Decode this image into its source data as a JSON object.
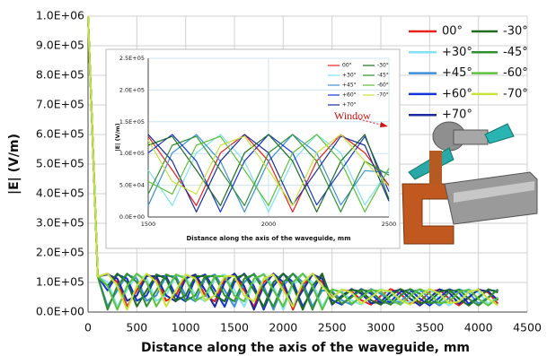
{
  "chart_data": [
    {
      "type": "line",
      "xlabel": "Distance along the axis of the waveguide, mm",
      "ylabel": "|E| (V/m)",
      "x": [
        0,
        100,
        200,
        300,
        400,
        500,
        600,
        700,
        800,
        900,
        1000,
        1100,
        1200,
        1300,
        1400,
        1500,
        1600,
        1700,
        1800,
        1900,
        2000,
        2100,
        2200,
        2300,
        2400,
        2500,
        2600,
        2700,
        2800,
        2900,
        3000,
        3100,
        3200,
        3300,
        3400,
        3500,
        3600,
        3700,
        3800,
        3900,
        4000,
        4100,
        4200
      ],
      "xlim": [
        0,
        4500
      ],
      "xticks": [
        0,
        500,
        1000,
        1500,
        2000,
        2500,
        3000,
        3500,
        4000,
        4500
      ],
      "ylim": [
        0,
        1000000
      ],
      "yticks": [
        {
          "value": 0,
          "label": "0.0E+00"
        },
        {
          "value": 100000,
          "label": "1.0E+05"
        },
        {
          "value": 200000,
          "label": "2.0E+05"
        },
        {
          "value": 300000,
          "label": "3.0E+05"
        },
        {
          "value": 400000,
          "label": "4.0E+05"
        },
        {
          "value": 500000,
          "label": "5.0E+05"
        },
        {
          "value": 600000,
          "label": "6.0E+05"
        },
        {
          "value": 700000,
          "label": "7.0E+05"
        },
        {
          "value": 800000,
          "label": "8.0E+05"
        },
        {
          "value": 900000,
          "label": "9.0E+05"
        },
        {
          "value": 1000000,
          "label": "1.0E+06"
        }
      ],
      "grid": true,
      "series": [
        {
          "name": "00°",
          "color": "#e8211c",
          "values": [
            1000000,
            120000,
            130000,
            101000,
            19000,
            73000,
            127000,
            113000,
            38000,
            56000,
            122000,
            121000,
            56000,
            36000,
            113000,
            127000,
            74000,
            18000,
            101000,
            130000,
            88000,
            8000,
            88000,
            130000,
            101000,
            50000,
            75000,
            70000,
            40000,
            25000,
            55000,
            78000,
            62000,
            30000,
            35000,
            68000,
            76000,
            45000,
            22000,
            48000,
            77000,
            66000,
            28000
          ]
        },
        {
          "name": "+30°",
          "color": "#7fe3f2",
          "values": [
            1000000,
            120000,
            101000,
            19000,
            73000,
            127000,
            113000,
            38000,
            56000,
            122000,
            121000,
            56000,
            36000,
            113000,
            127000,
            74000,
            18000,
            101000,
            130000,
            88000,
            8000,
            88000,
            130000,
            101000,
            19000,
            75000,
            70000,
            40000,
            25000,
            55000,
            78000,
            62000,
            30000,
            35000,
            68000,
            76000,
            45000,
            22000,
            48000,
            77000,
            66000,
            28000,
            50000
          ]
        },
        {
          "name": "+45°",
          "color": "#3b90d8",
          "values": [
            1000000,
            120000,
            19000,
            73000,
            127000,
            113000,
            38000,
            56000,
            122000,
            121000,
            56000,
            36000,
            113000,
            127000,
            74000,
            18000,
            101000,
            130000,
            88000,
            8000,
            88000,
            130000,
            101000,
            19000,
            73000,
            70000,
            40000,
            25000,
            55000,
            78000,
            62000,
            30000,
            35000,
            68000,
            76000,
            45000,
            22000,
            48000,
            77000,
            66000,
            28000,
            50000,
            75000
          ]
        },
        {
          "name": "+60°",
          "color": "#1434d8",
          "values": [
            1000000,
            120000,
            73000,
            127000,
            113000,
            38000,
            56000,
            122000,
            121000,
            56000,
            36000,
            113000,
            127000,
            74000,
            18000,
            101000,
            130000,
            88000,
            8000,
            88000,
            130000,
            101000,
            19000,
            73000,
            127000,
            40000,
            25000,
            55000,
            78000,
            62000,
            30000,
            35000,
            68000,
            76000,
            45000,
            22000,
            48000,
            77000,
            66000,
            28000,
            50000,
            75000,
            70000
          ]
        },
        {
          "name": "+70°",
          "color": "#1b2a9e",
          "values": [
            1000000,
            120000,
            127000,
            113000,
            38000,
            56000,
            122000,
            121000,
            56000,
            36000,
            113000,
            127000,
            74000,
            18000,
            101000,
            130000,
            88000,
            8000,
            88000,
            130000,
            101000,
            19000,
            73000,
            127000,
            113000,
            25000,
            55000,
            78000,
            62000,
            30000,
            35000,
            68000,
            76000,
            45000,
            22000,
            48000,
            77000,
            66000,
            28000,
            50000,
            75000,
            70000,
            40000
          ]
        },
        {
          "name": "-30°",
          "color": "#1f6b1f",
          "values": [
            1000000,
            120000,
            88000,
            130000,
            101000,
            19000,
            73000,
            127000,
            113000,
            38000,
            56000,
            122000,
            121000,
            56000,
            36000,
            113000,
            127000,
            74000,
            18000,
            101000,
            130000,
            88000,
            8000,
            88000,
            130000,
            28000,
            50000,
            75000,
            70000,
            40000,
            25000,
            55000,
            78000,
            62000,
            30000,
            35000,
            68000,
            76000,
            45000,
            22000,
            48000,
            77000,
            66000
          ]
        },
        {
          "name": "-45°",
          "color": "#2f8f2f",
          "values": [
            1000000,
            120000,
            8000,
            88000,
            130000,
            101000,
            19000,
            73000,
            127000,
            113000,
            38000,
            56000,
            122000,
            121000,
            56000,
            36000,
            113000,
            127000,
            74000,
            18000,
            101000,
            130000,
            88000,
            8000,
            88000,
            66000,
            28000,
            50000,
            75000,
            70000,
            40000,
            25000,
            55000,
            78000,
            62000,
            30000,
            35000,
            68000,
            76000,
            45000,
            22000,
            48000,
            77000
          ]
        },
        {
          "name": "-60°",
          "color": "#5cc23a",
          "values": [
            1000000,
            120000,
            88000,
            8000,
            88000,
            130000,
            101000,
            19000,
            73000,
            127000,
            113000,
            38000,
            56000,
            122000,
            121000,
            56000,
            36000,
            113000,
            127000,
            74000,
            18000,
            101000,
            130000,
            88000,
            8000,
            77000,
            66000,
            28000,
            50000,
            75000,
            70000,
            40000,
            25000,
            55000,
            78000,
            62000,
            30000,
            35000,
            68000,
            76000,
            45000,
            22000,
            48000
          ]
        },
        {
          "name": "-70°",
          "color": "#c6e33a",
          "values": [
            1000000,
            120000,
            130000,
            88000,
            8000,
            88000,
            130000,
            101000,
            19000,
            73000,
            127000,
            113000,
            38000,
            56000,
            122000,
            121000,
            56000,
            36000,
            113000,
            127000,
            74000,
            18000,
            101000,
            130000,
            88000,
            48000,
            77000,
            66000,
            28000,
            50000,
            75000,
            70000,
            40000,
            25000,
            55000,
            78000,
            62000,
            30000,
            35000,
            68000,
            76000,
            45000,
            22000
          ]
        }
      ]
    },
    {
      "type": "line",
      "xlabel": "Distance along the axis of the waveguide, mm",
      "ylabel": "|E| (V/m)",
      "annotation": "Window",
      "x": [
        1500,
        1600,
        1700,
        1800,
        1900,
        2000,
        2100,
        2200,
        2300,
        2400,
        2500
      ],
      "xlim": [
        1500,
        2500
      ],
      "xticks": [
        1500,
        2000,
        2500
      ],
      "ylim": [
        0,
        250000
      ],
      "yticks": [
        {
          "value": 0,
          "label": "0.0E+00"
        },
        {
          "value": 50000,
          "label": "5.0E+04"
        },
        {
          "value": 100000,
          "label": "1.0E+05"
        },
        {
          "value": 150000,
          "label": "1.5E+05"
        },
        {
          "value": 200000,
          "label": "2.0E+05"
        },
        {
          "value": 250000,
          "label": "2.5E+05"
        }
      ],
      "grid": true,
      "series": [
        {
          "name": "00°",
          "color": "#e8211c",
          "values": [
            127000,
            74000,
            18000,
            101000,
            130000,
            88000,
            8000,
            88000,
            130000,
            101000,
            50000
          ]
        },
        {
          "name": "+30°",
          "color": "#7fe3f2",
          "values": [
            74000,
            18000,
            101000,
            130000,
            88000,
            8000,
            88000,
            130000,
            101000,
            19000,
            75000
          ]
        },
        {
          "name": "+45°",
          "color": "#3b90d8",
          "values": [
            18000,
            101000,
            130000,
            88000,
            8000,
            88000,
            130000,
            101000,
            19000,
            73000,
            70000
          ]
        },
        {
          "name": "+60°",
          "color": "#1434d8",
          "values": [
            101000,
            130000,
            88000,
            8000,
            88000,
            130000,
            101000,
            19000,
            73000,
            127000,
            40000
          ]
        },
        {
          "name": "+70°",
          "color": "#1b2a9e",
          "values": [
            130000,
            88000,
            8000,
            88000,
            130000,
            101000,
            19000,
            73000,
            127000,
            113000,
            25000
          ]
        },
        {
          "name": "-30°",
          "color": "#1f6b1f",
          "values": [
            113000,
            127000,
            74000,
            18000,
            101000,
            130000,
            88000,
            8000,
            88000,
            130000,
            28000
          ]
        },
        {
          "name": "-45°",
          "color": "#2f8f2f",
          "values": [
            36000,
            113000,
            127000,
            74000,
            18000,
            101000,
            130000,
            88000,
            8000,
            88000,
            66000
          ]
        },
        {
          "name": "-60°",
          "color": "#5cc23a",
          "values": [
            56000,
            36000,
            113000,
            127000,
            74000,
            18000,
            101000,
            130000,
            88000,
            8000,
            77000
          ]
        },
        {
          "name": "-70°",
          "color": "#c6e33a",
          "values": [
            121000,
            56000,
            36000,
            113000,
            127000,
            74000,
            18000,
            101000,
            130000,
            88000,
            48000
          ]
        }
      ]
    }
  ]
}
